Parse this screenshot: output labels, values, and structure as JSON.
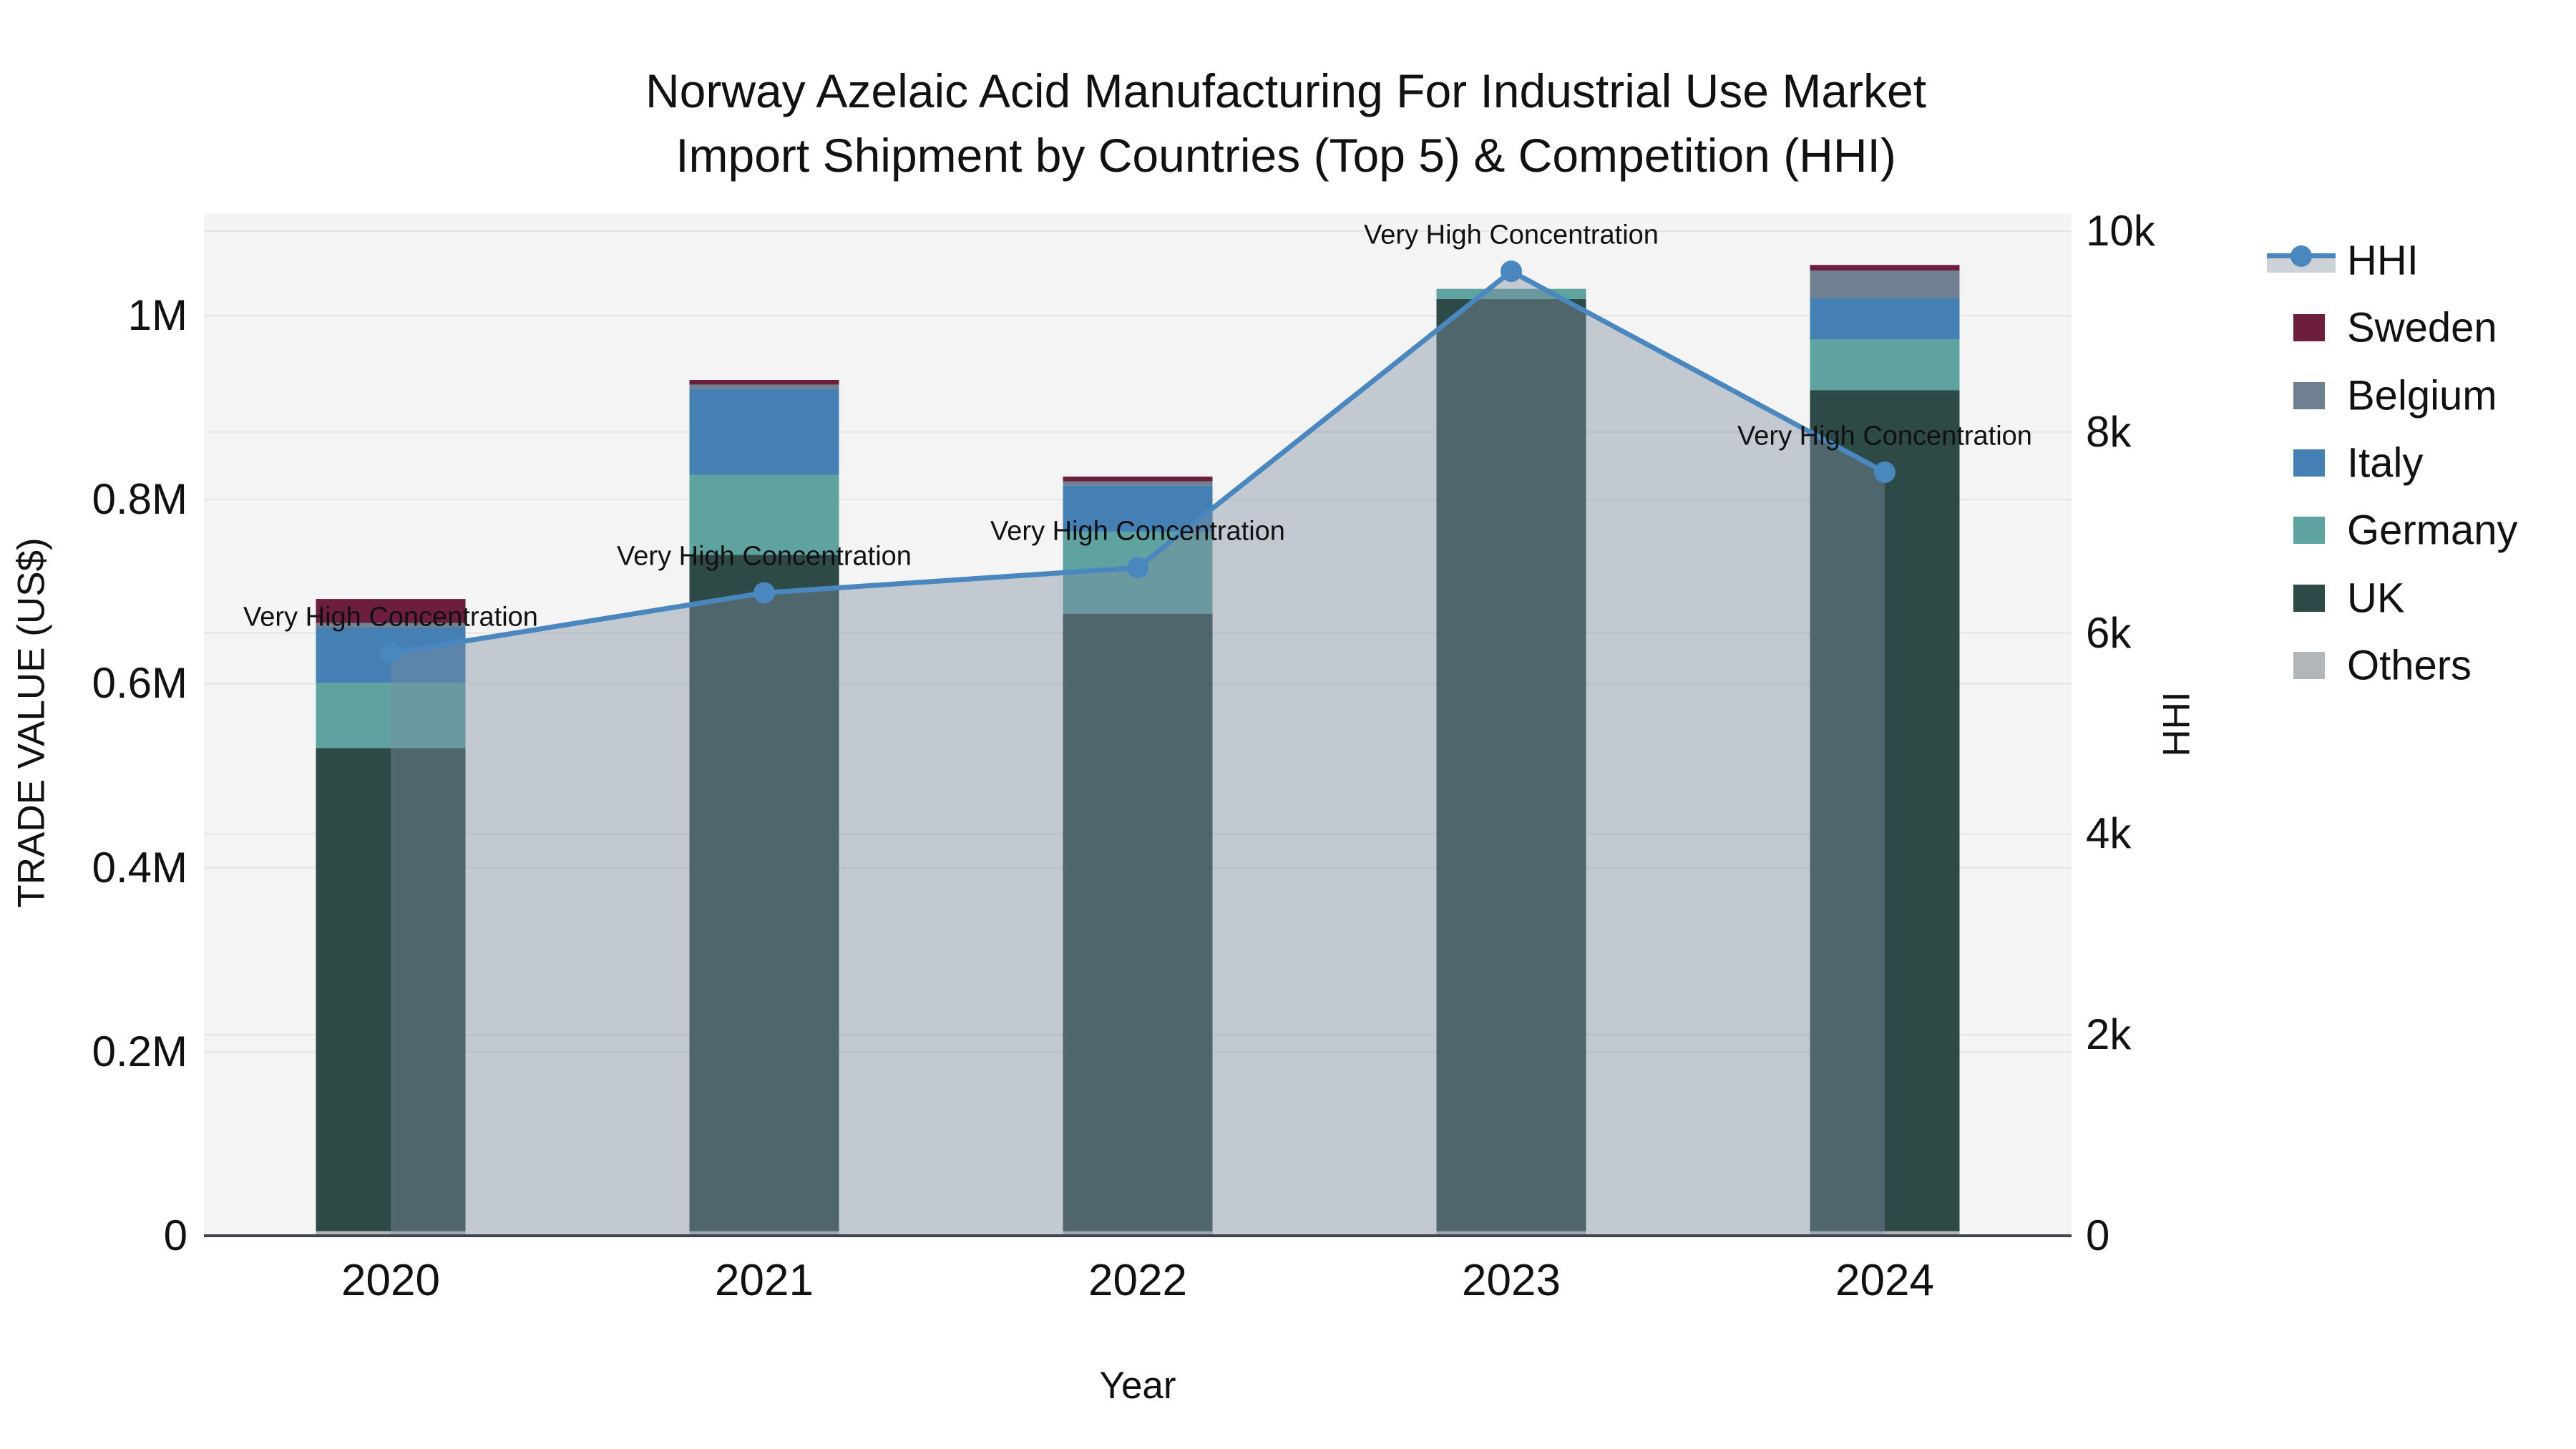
{
  "title": {
    "line1": "Norway Azelaic Acid Manufacturing For Industrial Use Market",
    "line2": "Import Shipment by Countries (Top 5) & Competition (HHI)"
  },
  "axes": {
    "left": {
      "title": "TRADE VALUE (US$)",
      "tick_labels": [
        "0",
        "0.2M",
        "0.4M",
        "0.6M",
        "0.8M",
        "1M"
      ]
    },
    "right": {
      "title": "HHI",
      "tick_labels": [
        "0",
        "2k",
        "4k",
        "6k",
        "8k",
        "10k"
      ]
    },
    "bottom": {
      "title": "Year",
      "tick_labels": [
        "2020",
        "2021",
        "2022",
        "2023",
        "2024"
      ]
    }
  },
  "legend": {
    "items": [
      {
        "label": "HHI",
        "type": "line",
        "color": "#4a87bf"
      },
      {
        "label": "Sweden",
        "type": "swatch",
        "color": "#6d1d3e"
      },
      {
        "label": "Belgium",
        "type": "swatch",
        "color": "#6f8090"
      },
      {
        "label": "Italy",
        "type": "swatch",
        "color": "#4480b4"
      },
      {
        "label": "Germany",
        "type": "swatch",
        "color": "#5fa3a0"
      },
      {
        "label": "UK",
        "type": "swatch",
        "color": "#2d4a47"
      },
      {
        "label": "Others",
        "type": "swatch",
        "color": "#b3b6b8"
      }
    ]
  },
  "annotation_text": "Very High Concentration",
  "colors": {
    "plot_bg": "#f4f4f4",
    "gridline": "#e4e4e7",
    "axis_line": "#3f454b",
    "hhi_line": "#4a87bf",
    "hhi_fill": "rgba(125,140,160,0.42)",
    "text": "#111111"
  },
  "chart_data": {
    "type": "bar+line",
    "title": "Norway Azelaic Acid Manufacturing For Industrial Use Market Import Shipment by Countries (Top 5) & Competition (HHI)",
    "xlabel": "Year",
    "ylabel_left": "TRADE VALUE (US$)",
    "ylabel_right": "HHI",
    "categories": [
      "2020",
      "2021",
      "2022",
      "2023",
      "2024"
    ],
    "bar_mode": "stacked",
    "series": [
      {
        "name": "Others",
        "color": "#b3b6b8",
        "values": [
          5000,
          5000,
          5000,
          5000,
          5000
        ]
      },
      {
        "name": "UK",
        "color": "#2d4a47",
        "values": [
          525000,
          735000,
          671000,
          1013000,
          914000
        ]
      },
      {
        "name": "Germany",
        "color": "#5fa3a0",
        "values": [
          71000,
          87000,
          89000,
          11000,
          55000
        ]
      },
      {
        "name": "Italy",
        "color": "#4480b4",
        "values": [
          60000,
          93000,
          50000,
          0,
          45000
        ]
      },
      {
        "name": "Belgium",
        "color": "#6f8090",
        "values": [
          5000,
          5000,
          5000,
          0,
          30000
        ]
      },
      {
        "name": "Sweden",
        "color": "#6d1d3e",
        "values": [
          26000,
          5000,
          5000,
          0,
          6000
        ]
      }
    ],
    "bar_totals": [
      692000,
      930000,
      825000,
      1029000,
      1055000
    ],
    "line_series": {
      "name": "HHI",
      "color": "#4a87bf",
      "values": [
        5800,
        6400,
        6650,
        9600,
        7600
      ],
      "fill": "tozeroy"
    },
    "annotations": [
      {
        "x": "2020",
        "text": "Very High Concentration"
      },
      {
        "x": "2021",
        "text": "Very High Concentration"
      },
      {
        "x": "2022",
        "text": "Very High Concentration"
      },
      {
        "x": "2023",
        "text": "Very High Concentration"
      },
      {
        "x": "2024",
        "text": "Very High Concentration"
      }
    ],
    "ylim_left": [
      0,
      1111000
    ],
    "ylim_right": [
      0,
      10180
    ],
    "left_tick_values": [
      0,
      200000,
      400000,
      600000,
      800000,
      1000000
    ],
    "right_tick_values": [
      0,
      2000,
      4000,
      6000,
      8000,
      10000
    ],
    "grid": true,
    "legend_position": "right"
  }
}
